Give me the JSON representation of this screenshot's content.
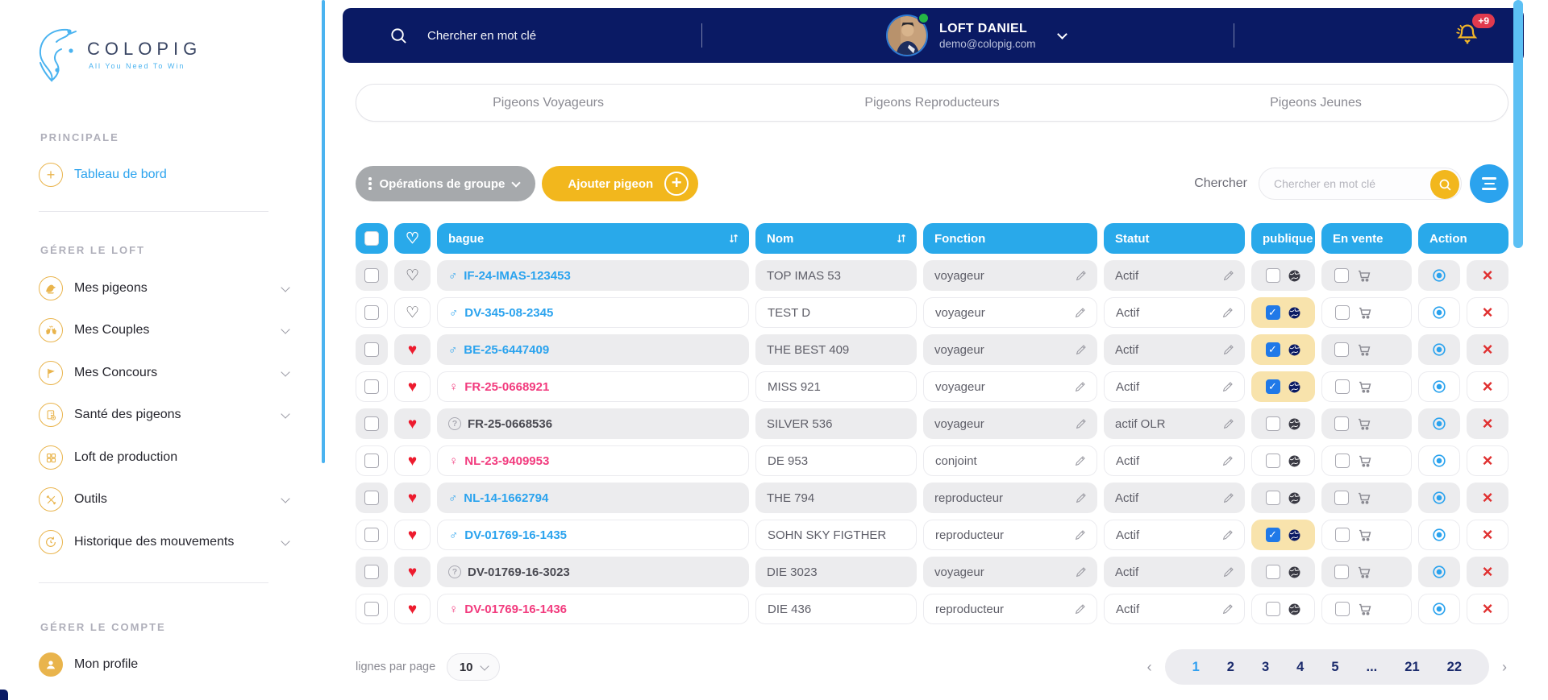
{
  "brand": {
    "name": "COLOPIG",
    "tagline": "All You Need To Win"
  },
  "sidebar": {
    "sections": [
      {
        "label": "PRINCIPALE",
        "items": [
          {
            "label": "Tableau de bord",
            "icon": "plus-circle-icon",
            "active": true
          }
        ]
      },
      {
        "label": "GÉRER LE LOFT",
        "items": [
          {
            "label": "Mes pigeons",
            "icon": "pigeon-icon",
            "chevron": true
          },
          {
            "label": "Mes Couples",
            "icon": "couple-icon",
            "chevron": true
          },
          {
            "label": "Mes Concours",
            "icon": "flag-icon",
            "chevron": true
          },
          {
            "label": "Santé des pigeons",
            "icon": "health-icon",
            "chevron": true
          },
          {
            "label": "Loft de production",
            "icon": "grid-icon",
            "chevron": false
          },
          {
            "label": "Outils",
            "icon": "tools-icon",
            "chevron": true
          },
          {
            "label": "Historique des mouvements",
            "icon": "history-icon",
            "chevron": true
          }
        ]
      },
      {
        "label": "GÉRER LE COMPTE",
        "items": [
          {
            "label": "Mon profile",
            "icon": "user-icon"
          }
        ]
      }
    ]
  },
  "header": {
    "search_placeholder": "Chercher en mot clé",
    "user": {
      "name": "LOFT DANIEL",
      "email": "demo@colopig.com",
      "status": "online"
    },
    "notifications_badge": "+9"
  },
  "tabs": [
    {
      "label": "Pigeons Voyageurs"
    },
    {
      "label": "Pigeons Reproducteurs"
    },
    {
      "label": "Pigeons Jeunes"
    }
  ],
  "toolbar": {
    "group_ops_label": "Opérations de groupe",
    "add_pigeon_label": "Ajouter pigeon",
    "search_label": "Chercher",
    "search_placeholder": "Chercher en mot clé"
  },
  "table": {
    "columns": {
      "bague": "bague",
      "nom": "Nom",
      "fonction": "Fonction",
      "statut": "Statut",
      "publique": "publique",
      "en_vente": "En vente",
      "action": "Action"
    },
    "rows": [
      {
        "favorite": false,
        "sex": "male",
        "bague": "IF-24-IMAS-123453",
        "nom": "TOP IMAS 53",
        "fonction": "voyageur",
        "statut": "Actif",
        "publique": false,
        "en_vente": false
      },
      {
        "favorite": false,
        "sex": "male",
        "bague": "DV-345-08-2345",
        "nom": "TEST D",
        "fonction": "voyageur",
        "statut": "Actif",
        "publique": true,
        "en_vente": false
      },
      {
        "favorite": true,
        "sex": "male",
        "bague": "BE-25-6447409",
        "nom": "THE BEST 409",
        "fonction": "voyageur",
        "statut": "Actif",
        "publique": true,
        "en_vente": false
      },
      {
        "favorite": true,
        "sex": "female",
        "bague": "FR-25-0668921",
        "nom": "MISS 921",
        "fonction": "voyageur",
        "statut": "Actif",
        "publique": true,
        "en_vente": false
      },
      {
        "favorite": true,
        "sex": "unknown",
        "bague": "FR-25-0668536",
        "nom": "SILVER 536",
        "fonction": "voyageur",
        "statut": "actif OLR",
        "publique": false,
        "en_vente": false
      },
      {
        "favorite": true,
        "sex": "female",
        "bague": "NL-23-9409953",
        "nom": "DE 953",
        "fonction": "conjoint",
        "statut": "Actif",
        "publique": false,
        "en_vente": false
      },
      {
        "favorite": true,
        "sex": "male",
        "bague": "NL-14-1662794",
        "nom": "THE 794",
        "fonction": "reproducteur",
        "statut": "Actif",
        "publique": false,
        "en_vente": false
      },
      {
        "favorite": true,
        "sex": "male",
        "bague": "DV-01769-16-1435",
        "nom": "SOHN SKY FIGTHER",
        "fonction": "reproducteur",
        "statut": "Actif",
        "publique": true,
        "en_vente": false
      },
      {
        "favorite": true,
        "sex": "unknown",
        "bague": "DV-01769-16-3023",
        "nom": "DIE 3023",
        "fonction": "voyageur",
        "statut": "Actif",
        "publique": false,
        "en_vente": false
      },
      {
        "favorite": true,
        "sex": "female",
        "bague": "DV-01769-16-1436",
        "nom": "DIE 436",
        "fonction": "reproducteur",
        "statut": "Actif",
        "publique": false,
        "en_vente": false
      }
    ]
  },
  "footer": {
    "rows_per_page_label": "lignes par page",
    "rows_per_page_value": "10",
    "pagination": {
      "pages": [
        "1",
        "2",
        "3",
        "4",
        "5",
        "...",
        "21",
        "22"
      ],
      "active": "1",
      "prev": "‹",
      "next": "›"
    }
  },
  "icons": {
    "search": "magnifier",
    "bell": "notification-bell",
    "heart_filled": "♥",
    "heart_outline": "♡",
    "male": "♂",
    "female": "♀",
    "unknown": "?",
    "edit": "pencil",
    "close": "×",
    "check": "✓",
    "globe": "globe",
    "cart": "shopping-cart",
    "eye": "eye"
  },
  "colors": {
    "navy": "#0A1A64",
    "sky_blue": "#29A9EA",
    "link_blue": "#2BA3EE",
    "gold": "#F2B71D",
    "sidebar_gold": "#E9B44C",
    "heart_red": "#ED1B2E",
    "female_pink": "#F23B7E",
    "checked_cream": "#F8E3AC",
    "row_gray": "#ECECEE",
    "badge_red": "#E03A4E",
    "scrollbar_blue": "#5CC0F4"
  }
}
